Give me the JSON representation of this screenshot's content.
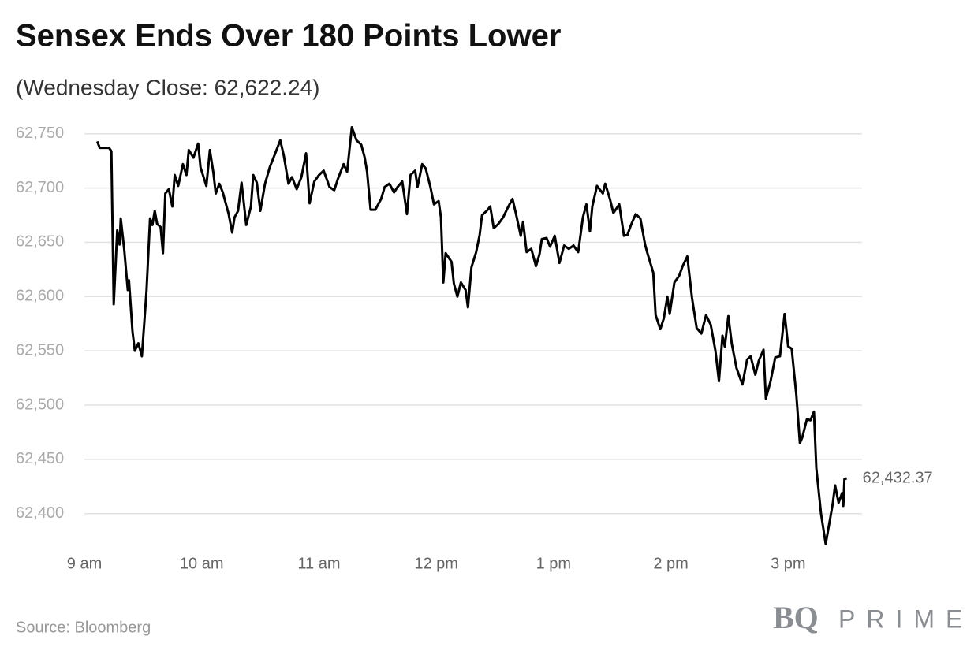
{
  "chart_data": {
    "type": "line",
    "title": "Sensex Ends Over 180 Points Lower",
    "subtitle": "(Wednesday Close: 62,622.24)",
    "source": "Source: Bloomberg",
    "logo_mark": "BQ",
    "logo_name": "PRIME",
    "color": "#000000",
    "grid": true,
    "xlim": [
      9,
      15.63
    ],
    "ylim": [
      62370,
      62760
    ],
    "xticks": [
      {
        "value": 9,
        "label": "9 am"
      },
      {
        "value": 10,
        "label": "10 am"
      },
      {
        "value": 11,
        "label": "11 am"
      },
      {
        "value": 12,
        "label": "12 pm"
      },
      {
        "value": 13,
        "label": "1 pm"
      },
      {
        "value": 14,
        "label": "2 pm"
      },
      {
        "value": 15,
        "label": "3 pm"
      }
    ],
    "yticks": [
      {
        "value": 62400,
        "label": "62,400"
      },
      {
        "value": 62450,
        "label": "62,450"
      },
      {
        "value": 62500,
        "label": "62,500"
      },
      {
        "value": 62550,
        "label": "62,550"
      },
      {
        "value": 62600,
        "label": "62,600"
      },
      {
        "value": 62650,
        "label": "62,650"
      },
      {
        "value": 62700,
        "label": "62,700"
      },
      {
        "value": 62750,
        "label": "62,750"
      }
    ],
    "x": [
      9.11,
      9.13,
      9.21,
      9.23,
      9.25,
      9.28,
      9.3,
      9.31,
      9.34,
      9.37,
      9.38,
      9.41,
      9.43,
      9.46,
      9.49,
      9.52,
      9.53,
      9.56,
      9.58,
      9.6,
      9.62,
      9.65,
      9.67,
      9.69,
      9.72,
      9.75,
      9.77,
      9.8,
      9.84,
      9.87,
      9.89,
      9.93,
      9.97,
      9.99,
      10.04,
      10.07,
      10.1,
      10.12,
      10.15,
      10.18,
      10.23,
      10.26,
      10.28,
      10.31,
      10.34,
      10.38,
      10.42,
      10.44,
      10.47,
      10.5,
      10.54,
      10.58,
      10.62,
      10.67,
      10.7,
      10.74,
      10.77,
      10.81,
      10.85,
      10.89,
      10.92,
      10.96,
      11.0,
      11.04,
      11.09,
      11.13,
      11.16,
      11.21,
      11.24,
      11.28,
      11.32,
      11.36,
      11.39,
      11.41,
      11.44,
      11.48,
      11.53,
      11.56,
      11.6,
      11.64,
      11.67,
      11.71,
      11.75,
      11.78,
      11.82,
      11.84,
      11.88,
      11.91,
      11.95,
      11.98,
      12.02,
      12.04,
      12.06,
      12.08,
      12.13,
      12.15,
      12.18,
      12.21,
      12.25,
      12.27,
      12.3,
      12.34,
      12.37,
      12.39,
      12.43,
      12.46,
      12.49,
      12.53,
      12.57,
      12.61,
      12.65,
      12.68,
      12.72,
      12.74,
      12.77,
      12.81,
      12.85,
      12.88,
      12.9,
      12.94,
      12.97,
      13.01,
      13.05,
      13.09,
      13.13,
      13.17,
      13.21,
      13.25,
      13.28,
      13.31,
      13.33,
      13.37,
      13.42,
      13.44,
      13.48,
      13.51,
      13.56,
      13.6,
      13.63,
      13.66,
      13.7,
      13.74,
      13.78,
      13.8,
      13.85,
      13.87,
      13.91,
      13.94,
      13.97,
      13.99,
      14.03,
      14.07,
      14.1,
      14.14,
      14.18,
      14.22,
      14.26,
      14.3,
      14.34,
      14.38,
      14.41,
      14.44,
      14.46,
      14.49,
      14.52,
      14.56,
      14.61,
      14.65,
      14.68,
      14.72,
      14.75,
      14.79,
      14.81,
      14.85,
      14.89,
      14.93,
      14.97,
      15.0,
      15.03,
      15.07,
      15.1,
      15.12,
      15.16,
      15.19,
      15.22,
      15.24,
      15.28,
      15.32,
      15.38,
      15.4,
      15.43,
      15.46,
      15.47,
      15.48,
      15.5
    ],
    "values": [
      62743,
      62737,
      62737,
      62734,
      62593,
      62661,
      62648,
      62672,
      62643,
      62606,
      62615,
      62568,
      62550,
      62557,
      62545,
      62590,
      62606,
      62672,
      62666,
      62679,
      62667,
      62664,
      62640,
      62695,
      62699,
      62683,
      62712,
      62702,
      62722,
      62712,
      62735,
      62728,
      62741,
      62719,
      62702,
      62735,
      62714,
      62695,
      62704,
      62696,
      62676,
      62659,
      62673,
      62679,
      62705,
      62666,
      62683,
      62712,
      62705,
      62679,
      62704,
      62719,
      62730,
      62744,
      62730,
      62704,
      62710,
      62699,
      62710,
      62732,
      62686,
      62706,
      62712,
      62716,
      62701,
      62698,
      62708,
      62722,
      62715,
      62756,
      62744,
      62740,
      62728,
      62715,
      62680,
      62680,
      62690,
      62701,
      62704,
      62696,
      62701,
      62706,
      62676,
      62712,
      62716,
      62701,
      62722,
      62718,
      62701,
      62685,
      62688,
      62673,
      62613,
      62640,
      62632,
      62612,
      62600,
      62613,
      62606,
      62590,
      62627,
      62641,
      62657,
      62675,
      62679,
      62683,
      62663,
      62667,
      62673,
      62682,
      62690,
      62676,
      62656,
      62669,
      62641,
      62644,
      62628,
      62639,
      62653,
      62654,
      62646,
      62656,
      62631,
      62647,
      62644,
      62647,
      62641,
      62673,
      62685,
      62660,
      62683,
      62702,
      62695,
      62704,
      62690,
      62677,
      62685,
      62656,
      62657,
      62666,
      62676,
      62672,
      62648,
      62640,
      62622,
      62583,
      62570,
      62580,
      62600,
      62584,
      62613,
      62619,
      62628,
      62637,
      62599,
      62571,
      62566,
      62583,
      62574,
      62550,
      62522,
      62564,
      62554,
      62582,
      62556,
      62534,
      62519,
      62542,
      62545,
      62528,
      62541,
      62551,
      62506,
      62522,
      62544,
      62545,
      62584,
      62554,
      62552,
      62509,
      62465,
      62470,
      62487,
      62486,
      62494,
      62442,
      62400,
      62372,
      62409,
      62426,
      62410,
      62419,
      62407,
      62432,
      62432.37
    ],
    "value_labels": [
      null,
      null,
      null,
      null,
      null,
      null,
      null,
      null,
      null,
      null,
      null,
      null,
      null,
      null,
      null,
      null,
      null,
      null,
      null,
      null,
      null,
      null,
      null,
      null,
      null,
      null,
      null,
      null,
      null,
      null,
      null,
      null,
      null,
      null,
      null,
      null,
      null,
      null,
      null,
      null,
      null,
      null,
      null,
      null,
      null,
      null,
      null,
      null,
      null,
      null,
      null,
      null,
      null,
      null,
      null,
      null,
      null,
      null,
      null,
      null,
      null,
      null,
      null,
      null,
      null,
      null,
      null,
      null,
      null,
      null,
      null,
      null,
      null,
      null,
      null,
      null,
      null,
      null,
      null,
      null,
      null,
      null,
      null,
      null,
      null,
      null,
      null,
      null,
      null,
      null,
      null,
      null,
      null,
      null,
      null,
      null,
      null,
      null,
      null,
      null,
      null,
      null,
      null,
      null,
      null,
      null,
      null,
      null,
      null,
      null,
      null,
      null,
      null,
      null,
      null,
      null,
      null,
      null,
      null,
      null,
      null,
      null,
      null,
      null,
      null,
      null,
      null,
      null,
      null,
      null,
      null,
      null,
      null,
      null,
      null,
      null,
      null,
      null,
      null,
      null,
      null,
      null,
      null,
      null,
      null,
      null,
      null,
      null,
      null,
      null,
      null,
      null,
      null,
      null,
      null,
      null,
      null,
      null,
      null,
      null,
      null,
      null,
      null,
      null,
      null,
      null,
      null,
      null,
      null,
      null,
      null,
      null,
      null,
      null,
      null,
      null,
      null,
      null,
      null,
      null,
      null,
      null,
      null,
      null,
      null,
      null,
      null,
      null,
      null,
      null,
      null,
      null,
      null,
      null,
      "62,432.37"
    ]
  }
}
